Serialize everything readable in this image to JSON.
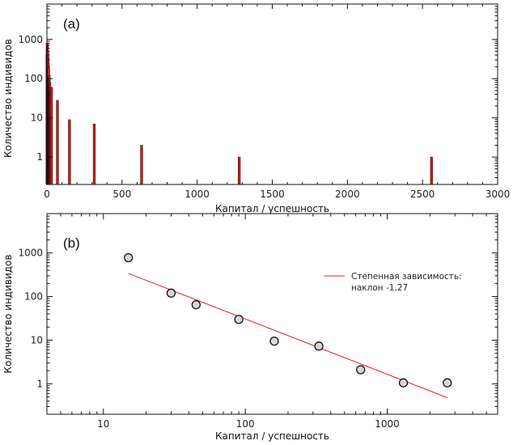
{
  "colors": {
    "bar_fill": "#c0201c",
    "bar_stroke": "#3a0a08",
    "fit_line": "#e0241b",
    "marker_fill": "#d6d6d6",
    "marker_stroke": "#111111",
    "frame": "#111111"
  },
  "chart_data": [
    {
      "panel": "(a)",
      "type": "bar",
      "xlabel": "Капитал / успешность",
      "ylabel": "Количество индивидов",
      "xlim": [
        0,
        3000
      ],
      "ylim": [
        0.2,
        8000
      ],
      "yscale": "log",
      "xticks": [
        0,
        500,
        1000,
        1500,
        2000,
        2500,
        3000
      ],
      "yticks": [
        1,
        10,
        100,
        1000
      ],
      "ytick_labels": [
        "1",
        "10",
        "100",
        "1000"
      ],
      "bars": [
        {
          "x": 1,
          "y": 400
        },
        {
          "x": 2,
          "y": 800
        },
        {
          "x": 3,
          "y": 600
        },
        {
          "x": 4,
          "y": 300
        },
        {
          "x": 5,
          "y": 500
        },
        {
          "x": 6,
          "y": 200
        },
        {
          "x": 7,
          "y": 350
        },
        {
          "x": 8,
          "y": 150
        },
        {
          "x": 9,
          "y": 250
        },
        {
          "x": 10,
          "y": 120
        },
        {
          "x": 11,
          "y": 180
        },
        {
          "x": 12,
          "y": 100
        },
        {
          "x": 13,
          "y": 90
        },
        {
          "x": 14,
          "y": 110
        },
        {
          "x": 15,
          "y": 120
        },
        {
          "x": 17,
          "y": 70
        },
        {
          "x": 19,
          "y": 80
        },
        {
          "x": 21,
          "y": 60
        },
        {
          "x": 23,
          "y": 50
        },
        {
          "x": 25,
          "y": 45
        },
        {
          "x": 30,
          "y": 60
        },
        {
          "x": 70,
          "y": 28
        },
        {
          "x": 150,
          "y": 9
        },
        {
          "x": 315,
          "y": 7
        },
        {
          "x": 630,
          "y": 2
        },
        {
          "x": 1280,
          "y": 1
        },
        {
          "x": 2560,
          "y": 1
        }
      ],
      "grid": false
    },
    {
      "panel": "(b)",
      "type": "scatter",
      "xlabel": "Капитал / успешность",
      "ylabel": "Количество индивидов",
      "xscale": "log",
      "yscale": "log",
      "xlim": [
        4,
        6000
      ],
      "ylim": [
        0.2,
        8000
      ],
      "xticks": [
        10,
        100,
        1000
      ],
      "xtick_labels": [
        "10",
        "100",
        "1000"
      ],
      "yticks": [
        1,
        10,
        100,
        1000
      ],
      "ytick_labels": [
        "1",
        "10",
        "100",
        "1000"
      ],
      "points": [
        {
          "x": 15,
          "y": 780
        },
        {
          "x": 30,
          "y": 120
        },
        {
          "x": 45,
          "y": 65
        },
        {
          "x": 90,
          "y": 30
        },
        {
          "x": 160,
          "y": 9.5
        },
        {
          "x": 330,
          "y": 7.3
        },
        {
          "x": 650,
          "y": 2.1
        },
        {
          "x": 1300,
          "y": 1.05
        },
        {
          "x": 2650,
          "y": 1.05
        }
      ],
      "fit": {
        "x": [
          15,
          2650
        ],
        "y": [
          340,
          0.48
        ],
        "slope": -1.27
      },
      "legend": {
        "line1": "Степенная зависимость:",
        "line2": "наклон -1,27",
        "placement": "top-right"
      },
      "grid": false
    }
  ]
}
